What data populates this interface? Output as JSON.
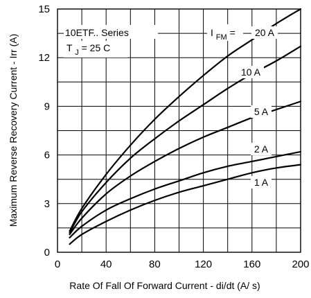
{
  "chart_data": {
    "type": "line",
    "title": "",
    "xlabel": "Rate Of Fall Of Forward Current - di/dt (A/  s)",
    "ylabel": "Maximum Reverse Recovery Current - Irr (A)",
    "xlim": [
      0,
      200
    ],
    "ylim": [
      0,
      15
    ],
    "x_ticks": [
      0,
      40,
      80,
      120,
      160,
      200
    ],
    "y_ticks": [
      0,
      3,
      6,
      9,
      12,
      15
    ],
    "grid": true,
    "legend": "none",
    "annotations": {
      "series_name": "10ETF.. Series",
      "tj_prefix": "T",
      "tj_sub": "J",
      "tj_value": " = 25    C",
      "ifm_prefix": "I",
      "ifm_sub": "FM",
      "ifm_suffix": " = "
    },
    "series": [
      {
        "label": "20 A",
        "points": [
          [
            10,
            1.3
          ],
          [
            20,
            2.7
          ],
          [
            40,
            4.8
          ],
          [
            60,
            6.6
          ],
          [
            80,
            8.2
          ],
          [
            100,
            9.6
          ],
          [
            120,
            10.9
          ],
          [
            140,
            12.1
          ],
          [
            160,
            13.1
          ],
          [
            180,
            14.1
          ],
          [
            200,
            15.0
          ]
        ]
      },
      {
        "label": "10 A",
        "points": [
          [
            10,
            1.2
          ],
          [
            20,
            2.5
          ],
          [
            40,
            4.3
          ],
          [
            60,
            5.8
          ],
          [
            80,
            7.0
          ],
          [
            100,
            8.1
          ],
          [
            120,
            9.1
          ],
          [
            140,
            10.1
          ],
          [
            160,
            11.0
          ],
          [
            180,
            11.8
          ],
          [
            200,
            12.7
          ]
        ]
      },
      {
        "label": "5 A",
        "points": [
          [
            10,
            1.1
          ],
          [
            20,
            2.1
          ],
          [
            40,
            3.6
          ],
          [
            60,
            4.7
          ],
          [
            80,
            5.6
          ],
          [
            100,
            6.4
          ],
          [
            120,
            7.1
          ],
          [
            140,
            7.7
          ],
          [
            160,
            8.3
          ],
          [
            180,
            8.8
          ],
          [
            200,
            9.3
          ]
        ]
      },
      {
        "label": "2 A",
        "points": [
          [
            10,
            0.9
          ],
          [
            20,
            1.6
          ],
          [
            40,
            2.6
          ],
          [
            60,
            3.3
          ],
          [
            80,
            3.9
          ],
          [
            100,
            4.4
          ],
          [
            120,
            4.9
          ],
          [
            140,
            5.3
          ],
          [
            160,
            5.6
          ],
          [
            180,
            5.9
          ],
          [
            200,
            6.2
          ]
        ]
      },
      {
        "label": "1 A",
        "points": [
          [
            10,
            0.5
          ],
          [
            20,
            1.1
          ],
          [
            40,
            1.9
          ],
          [
            60,
            2.6
          ],
          [
            80,
            3.2
          ],
          [
            100,
            3.7
          ],
          [
            120,
            4.1
          ],
          [
            140,
            4.5
          ],
          [
            160,
            4.9
          ],
          [
            180,
            5.2
          ],
          [
            200,
            5.4
          ]
        ]
      }
    ]
  }
}
